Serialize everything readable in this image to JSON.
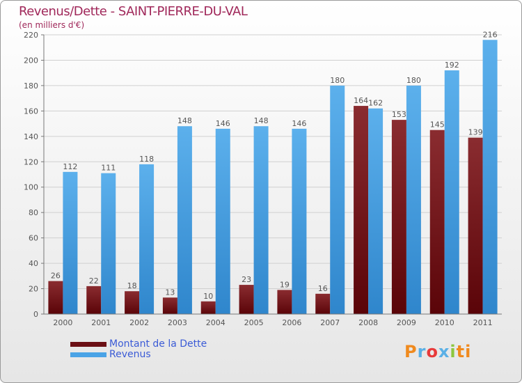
{
  "title": "Revenus/Dette - SAINT-PIERRE-DU-VAL",
  "subtitle": "(en milliers d'€)",
  "logo": [
    "P",
    "r",
    "o",
    "x",
    "i",
    "ti"
  ],
  "colors": {
    "dette": "#6b0f14",
    "revenus": "#4aa3e6",
    "text": "#555555",
    "title": "#a0285a",
    "legend": "#3b5bd6"
  },
  "chart_data": {
    "type": "bar",
    "categories": [
      "2000",
      "2001",
      "2002",
      "2003",
      "2004",
      "2005",
      "2006",
      "2007",
      "2008",
      "2009",
      "2010",
      "2011"
    ],
    "series": [
      {
        "name": "Montant de la Dette",
        "values": [
          26,
          22,
          18,
          13,
          10,
          23,
          19,
          16,
          164,
          153,
          145,
          139
        ]
      },
      {
        "name": "Revenus",
        "values": [
          112,
          111,
          118,
          148,
          146,
          148,
          146,
          180,
          162,
          180,
          192,
          216
        ]
      }
    ],
    "yticks": [
      0,
      20,
      40,
      60,
      80,
      100,
      120,
      140,
      160,
      180,
      200,
      220
    ],
    "ylim": [
      0,
      220
    ],
    "title": "Revenus/Dette - SAINT-PIERRE-DU-VAL",
    "ylabel": "(en milliers d'€)",
    "xlabel": ""
  }
}
